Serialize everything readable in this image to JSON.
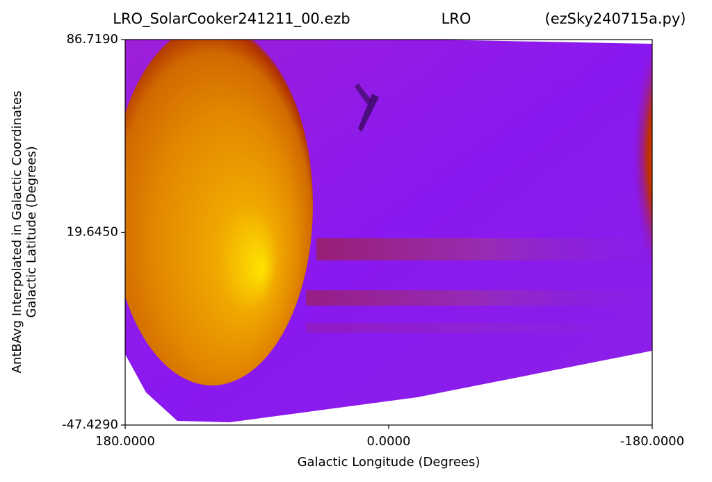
{
  "chart_data": {
    "type": "heatmap",
    "title": [
      "LRO_SolarCooker241211_00.ezb",
      "LRO",
      "(ezSky240715a.py)"
    ],
    "ylabel": [
      "AntBAvg Interpolated in Galactic Coordinates",
      "Galactic Latitude (Degrees)"
    ],
    "xlabel": "Galactic Longitude (Degrees)",
    "xlim": [
      180,
      -180
    ],
    "xticks": [
      {
        "value": 180,
        "label": "180.0000"
      },
      {
        "value": 0,
        "label": "0.0000"
      },
      {
        "value": -180,
        "label": "-180.0000"
      }
    ],
    "ylim": [
      -47.429,
      86.719
    ],
    "yticks": [
      {
        "value": 86.719,
        "label": "86.7190"
      },
      {
        "value": 19.645,
        "label": "19.6450"
      },
      {
        "value": -47.429,
        "label": "-47.4290"
      }
    ]
  }
}
